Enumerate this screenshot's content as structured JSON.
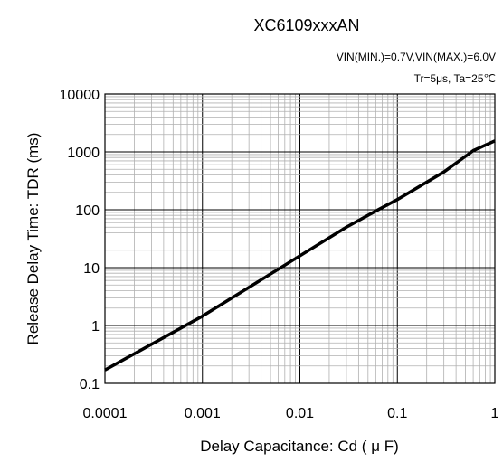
{
  "chart_data": {
    "type": "line",
    "title": "XC6109xxxAN",
    "conditions": [
      "VIN(MIN.)=0.7V,VIN(MAX.)=6.0V",
      "Tr=5μs, Ta=25℃"
    ],
    "xlabel": "Delay Capacitance: Cd ( μ F)",
    "ylabel": "Release Delay Time: TDR (ms)",
    "x_scale": "log",
    "y_scale": "log",
    "xlim": [
      0.0001,
      1
    ],
    "ylim": [
      0.1,
      10000
    ],
    "x_ticks": [
      "0.0001",
      "0.001",
      "0.01",
      "0.1",
      "1"
    ],
    "y_ticks": [
      "0.1",
      "1",
      "10",
      "100",
      "1000",
      "10000"
    ],
    "grid": true,
    "series": [
      {
        "x": [
          0.0001,
          0.001,
          0.01,
          0.03,
          0.06,
          0.1,
          0.3,
          0.6,
          1
        ],
        "y": [
          0.17,
          1.45,
          16,
          50,
          95,
          150,
          450,
          1050,
          1550
        ]
      }
    ],
    "colors": {
      "line": "#000000",
      "major_grid": "#000000",
      "minor_grid": "#b0b0b0"
    }
  }
}
